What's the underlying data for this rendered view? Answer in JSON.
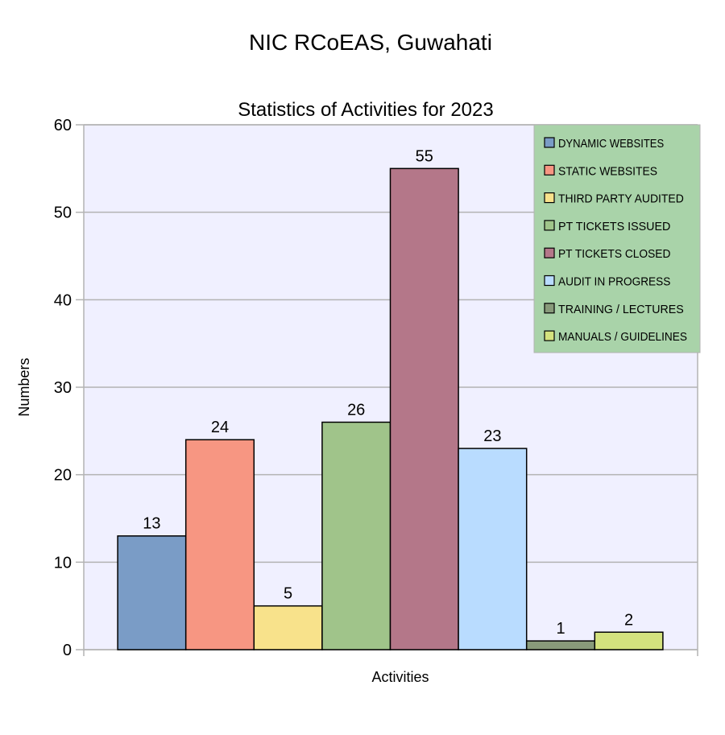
{
  "page_title": "NIC RCoEAS, Guwahati",
  "chart_data": {
    "type": "bar",
    "title": "Statistics of Activities for 2023",
    "xlabel": "Activities",
    "ylabel": "Numbers",
    "ylim": [
      0,
      60
    ],
    "yticks": [
      0,
      10,
      20,
      30,
      40,
      50,
      60
    ],
    "grid": true,
    "legend_position": "top-right",
    "plot_background": "#f0f0ff",
    "legend_background": "#a9d3a9",
    "series": [
      {
        "name": "DYNAMIC WEBSITES",
        "value": 13,
        "color": "#7a9cc6"
      },
      {
        "name": "STATIC WEBSITES",
        "value": 24,
        "color": "#f79682"
      },
      {
        "name": "THIRD PARTY AUDITED",
        "value": 5,
        "color": "#f8e28b"
      },
      {
        "name": "PT TICKETS ISSUED",
        "value": 26,
        "color": "#a0c48a"
      },
      {
        "name": "PT TICKETS CLOSED",
        "value": 55,
        "color": "#b47789"
      },
      {
        "name": "AUDIT IN PROGRESS",
        "value": 23,
        "color": "#b9dcff"
      },
      {
        "name": "TRAINING / LECTURES",
        "value": 1,
        "color": "#889a7a"
      },
      {
        "name": "MANUALS / GUIDELINES",
        "value": 2,
        "color": "#d4e27e"
      }
    ]
  }
}
